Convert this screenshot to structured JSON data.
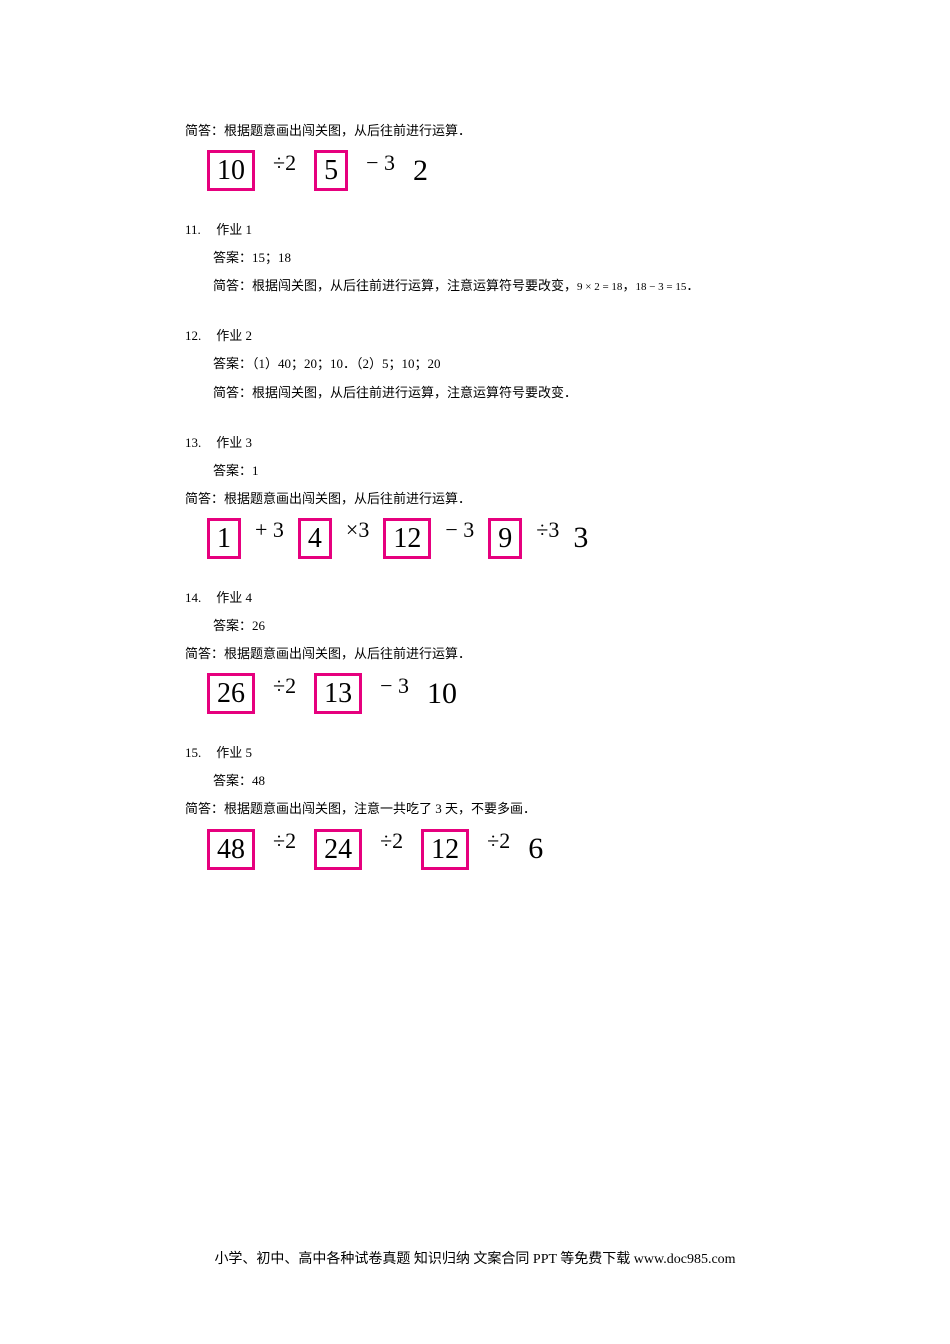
{
  "top": {
    "explain": "简答：根据题意画出闯关图，从后往前进行运算．",
    "flow": {
      "b1": "10",
      "op1": "÷2",
      "b2": "5",
      "op2": "− 3",
      "r": "2"
    }
  },
  "q11": {
    "num": "11.",
    "title": "作业 1",
    "ans": "答案：15；18",
    "explain_prefix": "简答：根据闯关图，从后往前进行运算，注意运算符号要改变，",
    "eq1": "9 × 2 = 18",
    "sep": "，",
    "eq2": "18 − 3 = 15",
    "suffix": "．"
  },
  "q12": {
    "num": "12.",
    "title": "作业 2",
    "ans": "答案：（1）40；20；10．（2）5；10；20",
    "explain": "简答：根据闯关图，从后往前进行运算，注意运算符号要改变．"
  },
  "q13": {
    "num": "13.",
    "title": "作业 3",
    "ans": "答案：1",
    "explain": "简答：根据题意画出闯关图，从后往前进行运算．",
    "flow": {
      "b1": "1",
      "op1": "+ 3",
      "b2": "4",
      "op2": "×3",
      "b3": "12",
      "op3": "− 3",
      "b4": "9",
      "op4": "÷3",
      "r": "3"
    }
  },
  "q14": {
    "num": "14.",
    "title": "作业 4",
    "ans": "答案：26",
    "explain": "简答：根据题意画出闯关图，从后往前进行运算．",
    "flow": {
      "b1": "26",
      "op1": "÷2",
      "b2": "13",
      "op2": "− 3",
      "r": "10"
    }
  },
  "q15": {
    "num": "15.",
    "title": "作业 5",
    "ans": "答案：48",
    "explain": "简答：根据题意画出闯关图，注意一共吃了 3 天，不要多画．",
    "flow": {
      "b1": "48",
      "op1": "÷2",
      "b2": "24",
      "op2": "÷2",
      "b3": "12",
      "op3": "÷2",
      "r": "6"
    }
  },
  "footer": "小学、初中、高中各种试卷真题  知识归纳  文案合同  PPT 等免费下载    www.doc985.com"
}
